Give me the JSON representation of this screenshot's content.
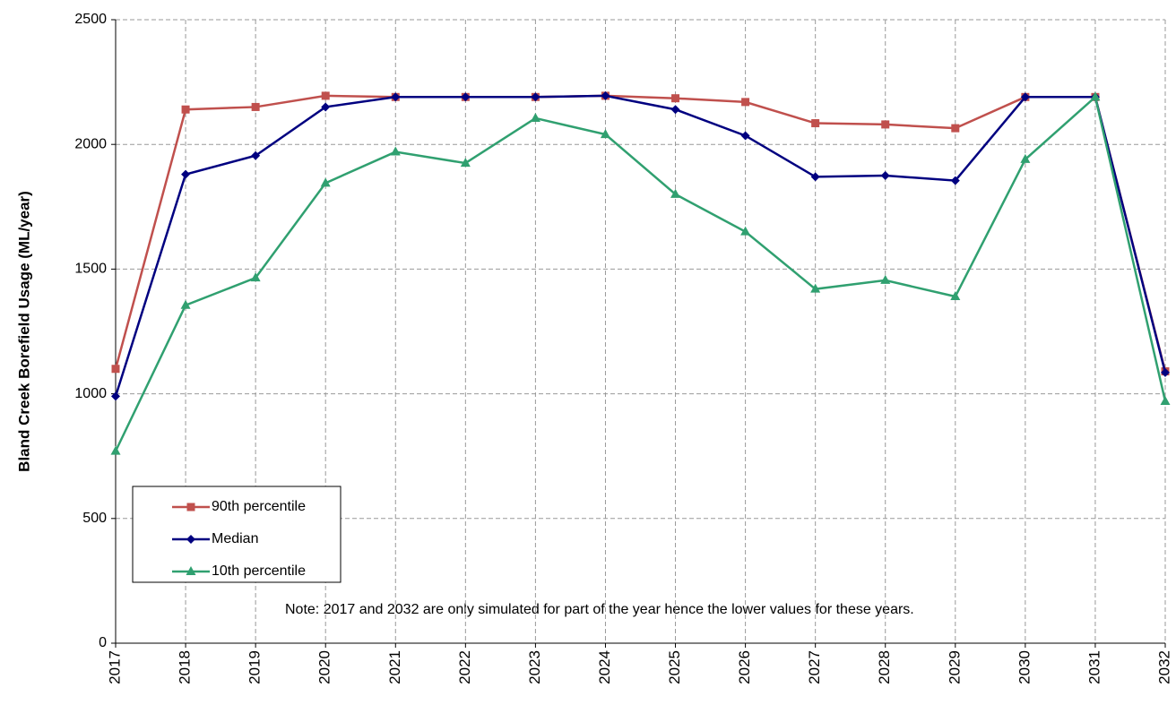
{
  "chart_data": {
    "type": "line",
    "y_label": "Bland Creek Borefield Usage (ML/year)",
    "note": "Note: 2017 and 2032 are only simulated for part of the year hence the lower values for these years.",
    "categories": [
      "2017",
      "2018",
      "2019",
      "2020",
      "2021",
      "2022",
      "2023",
      "2024",
      "2025",
      "2026",
      "2027",
      "2028",
      "2029",
      "2030",
      "2031",
      "2032"
    ],
    "series": [
      {
        "name": "90th percentile",
        "color": "#c0504d",
        "marker": "square",
        "values": [
          1100,
          2140,
          2150,
          2195,
          2190,
          2190,
          2190,
          2195,
          2185,
          2170,
          2085,
          2080,
          2065,
          2190,
          2190,
          1090
        ]
      },
      {
        "name": "Median",
        "color": "#000080",
        "marker": "diamond",
        "values": [
          990,
          1880,
          1955,
          2150,
          2190,
          2190,
          2190,
          2195,
          2140,
          2035,
          1870,
          1875,
          1855,
          2190,
          2190,
          1085
        ]
      },
      {
        "name": "10th percentile",
        "color": "#30a070",
        "marker": "triangle",
        "values": [
          770,
          1355,
          1465,
          1845,
          1970,
          1925,
          2105,
          2040,
          1800,
          1650,
          1420,
          1455,
          1390,
          1940,
          2190,
          970
        ]
      }
    ],
    "ylim": [
      0,
      2500
    ],
    "yticks": [
      0,
      500,
      1000,
      1500,
      2000,
      2500
    ],
    "grid": true
  }
}
